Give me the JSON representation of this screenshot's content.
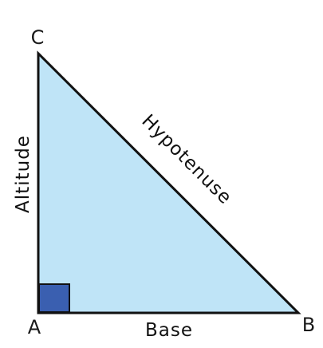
{
  "vertices": {
    "a": "A",
    "b": "B",
    "c": "C"
  },
  "sides": {
    "base": "Base",
    "altitude": "Altitude",
    "hypotenuse": "Hypotenuse"
  },
  "colors": {
    "triangle_fill": "#bfe4f7",
    "triangle_stroke": "#111111",
    "right_angle_marker": "#3a5fb0"
  }
}
